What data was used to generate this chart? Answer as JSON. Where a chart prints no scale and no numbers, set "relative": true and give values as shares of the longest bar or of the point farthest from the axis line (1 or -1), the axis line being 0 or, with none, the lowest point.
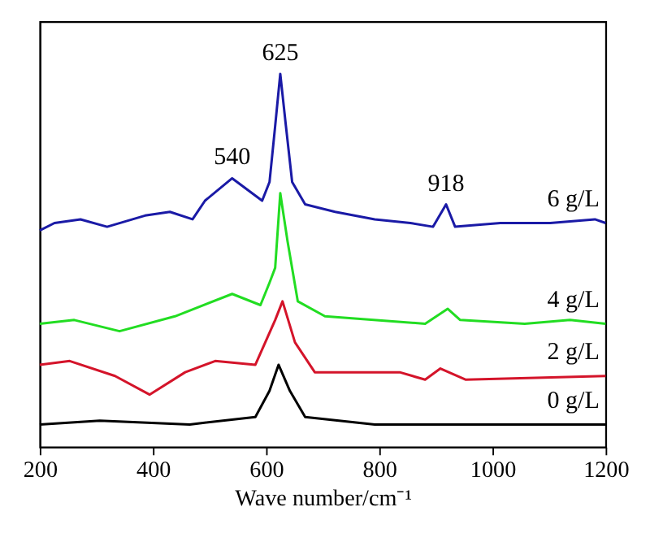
{
  "chart_data": {
    "type": "line",
    "relative": true,
    "xlabel": "Wave number/cm⁻¹",
    "xlim": [
      200,
      1200
    ],
    "xticks": [
      200,
      400,
      600,
      800,
      1000,
      1200
    ],
    "grid": false,
    "tick_labels": "x",
    "line_style": "solid",
    "marker": "none",
    "annotations": [
      {
        "text": "540",
        "x": 540,
        "y": 0.72
      },
      {
        "text": "625",
        "x": 625,
        "y": 1.0
      },
      {
        "text": "918",
        "x": 918,
        "y": 0.65
      }
    ],
    "series": [
      {
        "name": "6 g/L",
        "color": "#1a1aa6",
        "x": [
          200,
          226,
          272,
          319,
          386,
          430,
          470,
          492,
          540,
          593,
          606,
          616,
          625,
          635,
          646,
          669,
          722,
          792,
          855,
          895,
          918,
          934,
          1014,
          1102,
          1181,
          1200
        ],
        "values": [
          0.58,
          0.6,
          0.61,
          0.59,
          0.62,
          0.63,
          0.61,
          0.66,
          0.72,
          0.66,
          0.71,
          0.86,
          1.0,
          0.86,
          0.71,
          0.65,
          0.63,
          0.61,
          0.6,
          0.59,
          0.65,
          0.59,
          0.6,
          0.6,
          0.61,
          0.6
        ]
      },
      {
        "name": "4 g/L",
        "color": "#22dd22",
        "x": [
          200,
          261,
          341,
          439,
          540,
          590,
          606,
          616,
          625,
          638,
          656,
          704,
          881,
          921,
          943,
          1057,
          1137,
          1200
        ],
        "values": [
          0.33,
          0.34,
          0.31,
          0.35,
          0.41,
          0.38,
          0.44,
          0.48,
          0.68,
          0.55,
          0.39,
          0.35,
          0.33,
          0.37,
          0.34,
          0.33,
          0.34,
          0.33
        ]
      },
      {
        "name": "2 g/L",
        "color": "#d4142a",
        "x": [
          200,
          253,
          333,
          394,
          457,
          510,
          581,
          616,
          629,
          651,
          686,
          836,
          881,
          908,
          953,
          1200
        ],
        "values": [
          0.22,
          0.23,
          0.19,
          0.14,
          0.2,
          0.23,
          0.22,
          0.34,
          0.39,
          0.28,
          0.2,
          0.2,
          0.18,
          0.21,
          0.18,
          0.19
        ]
      },
      {
        "name": "0 g/L",
        "color": "#000000",
        "x": [
          200,
          306,
          465,
          581,
          606,
          622,
          642,
          669,
          792,
          1200
        ],
        "values": [
          0.06,
          0.07,
          0.06,
          0.08,
          0.15,
          0.22,
          0.15,
          0.08,
          0.06,
          0.06
        ]
      }
    ]
  }
}
